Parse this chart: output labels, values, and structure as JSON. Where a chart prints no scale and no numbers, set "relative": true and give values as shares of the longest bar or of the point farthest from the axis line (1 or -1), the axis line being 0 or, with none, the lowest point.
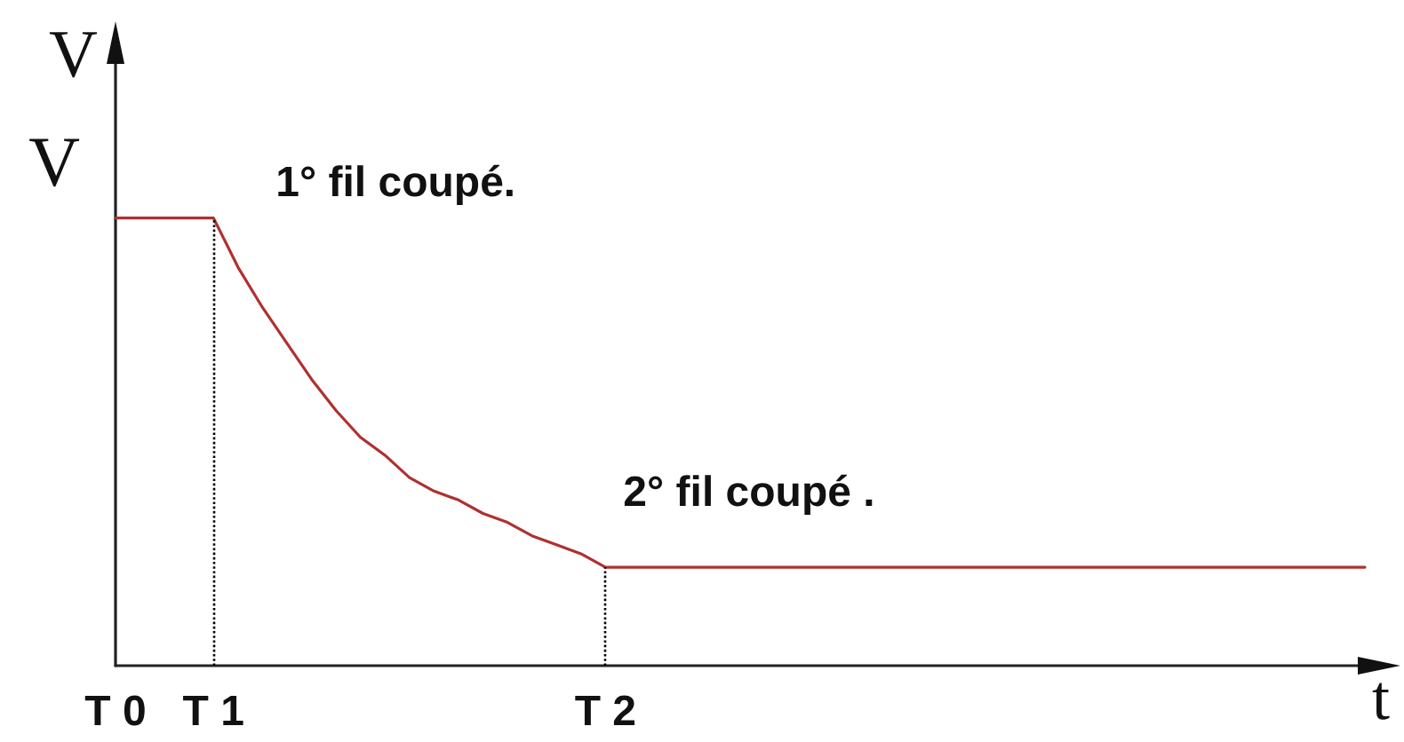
{
  "chart_data": {
    "type": "line",
    "xlabel": "t",
    "ylabel": "V",
    "relative": true,
    "categories": [
      "T 0",
      null,
      null,
      null,
      "T 1",
      null,
      null,
      null,
      null,
      null,
      null,
      null,
      null,
      null,
      null,
      null,
      null,
      null,
      null,
      null,
      "T 2",
      null,
      null,
      null,
      null,
      null,
      null,
      null,
      null,
      null,
      null,
      null,
      null,
      null,
      null,
      null,
      null,
      null,
      null,
      null,
      null,
      null,
      null,
      null,
      null,
      null,
      null,
      null,
      null,
      null,
      null,
      null
    ],
    "values": [
      1,
      1,
      1,
      1,
      1,
      0.89,
      0.8,
      0.72,
      0.64,
      0.57,
      0.51,
      0.47,
      0.42,
      0.39,
      0.37,
      0.34,
      0.32,
      0.29,
      0.27,
      0.25,
      0.22,
      0.22,
      0.22,
      0.22,
      0.22,
      0.22,
      0.22,
      0.22,
      0.22,
      0.22,
      0.22,
      0.22,
      0.22,
      0.22,
      0.22,
      0.22,
      0.22,
      0.22,
      0.22,
      0.22,
      0.22,
      0.22,
      0.22,
      0.22,
      0.22,
      0.22,
      0.22,
      0.22,
      0.22,
      0.22,
      0.22,
      0.22
    ],
    "color": "#b03030",
    "marker": "none",
    "line_style": "solid",
    "ref_lines": [
      {
        "axis": "x",
        "value": "T 1",
        "color": "#000000",
        "line_style": "dotted"
      },
      {
        "axis": "x",
        "value": "T 2",
        "color": "#000000",
        "line_style": "dotted"
      }
    ],
    "annotations": [
      {
        "text": "V",
        "x": "T 0",
        "y": 1
      },
      {
        "text": "1° fil coupé.",
        "x": "T 1",
        "y": 1
      },
      {
        "text": "2° fil coupé .",
        "x": "T 2",
        "y": 0.22
      }
    ]
  }
}
